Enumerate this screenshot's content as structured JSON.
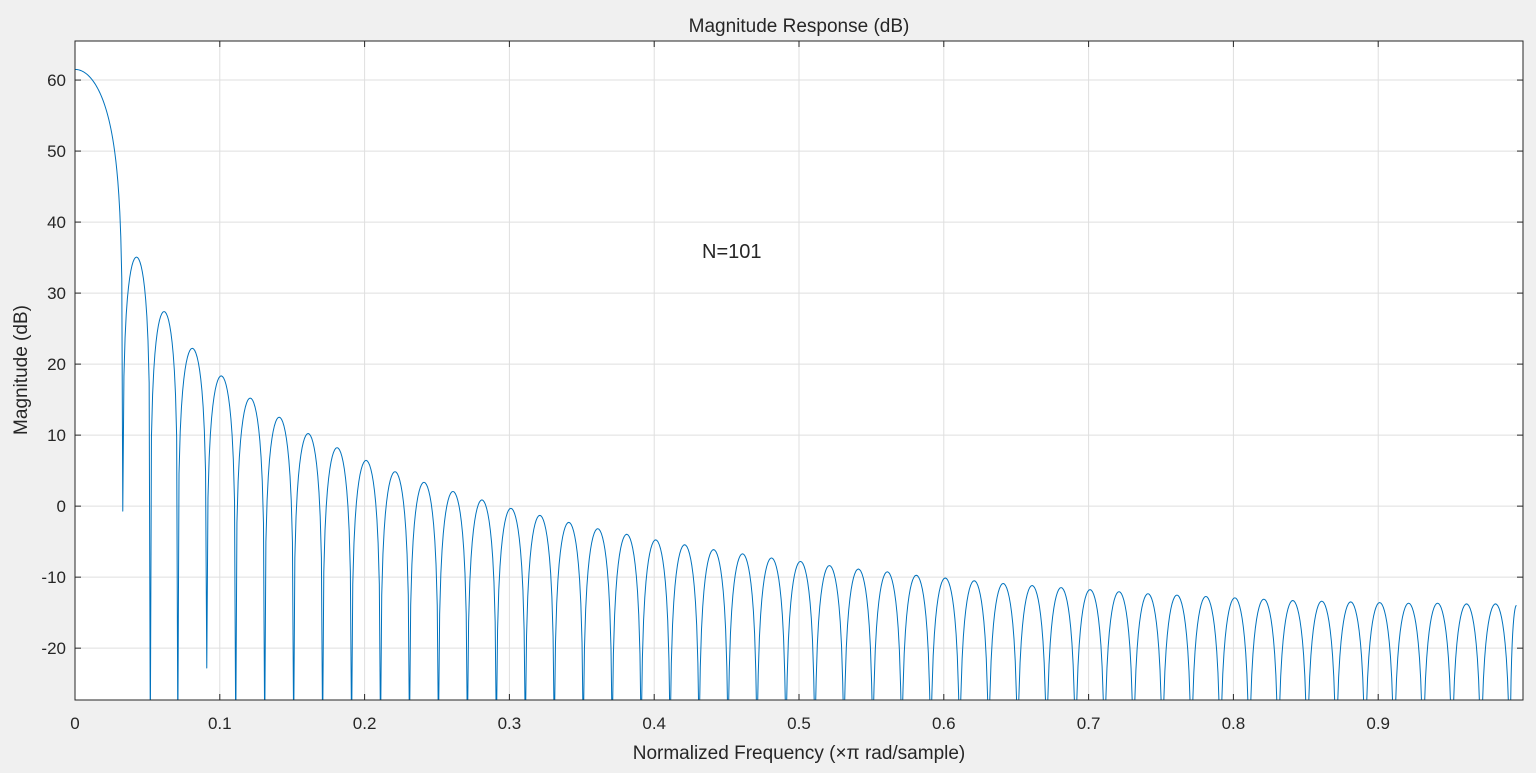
{
  "chart_data": {
    "type": "line",
    "title": "Magnitude Response (dB)",
    "xlabel": "Normalized Frequency (×π rad/sample)",
    "ylabel": "Magnitude (dB)",
    "annotation": "N=101",
    "xlim": [
      0,
      1
    ],
    "ylim": [
      -27.3,
      65.5
    ],
    "xticks": [
      0,
      0.1,
      0.2,
      0.3,
      0.4,
      0.5,
      0.6,
      0.7,
      0.8,
      0.9
    ],
    "xtick_labels": [
      "0",
      "0.1",
      "0.2",
      "0.3",
      "0.4",
      "0.5",
      "0.6",
      "0.7",
      "0.8",
      "0.9"
    ],
    "yticks": [
      60,
      50,
      40,
      30,
      20,
      10,
      0,
      -10,
      -20
    ],
    "ytick_labels": [
      "60",
      "50",
      "40",
      "30",
      "20",
      "10",
      "0",
      "-10",
      "-20"
    ],
    "grid": true,
    "line_color": "#0072bd",
    "grid_color": "#dfdfdf",
    "series": [
      {
        "peaks": {
          "x": [
            0.0,
            0.04,
            0.06,
            0.08,
            0.1,
            0.12,
            0.14,
            0.16,
            0.18,
            0.2,
            0.22,
            0.24,
            0.26,
            0.28,
            0.3,
            0.32,
            0.34,
            0.36,
            0.38,
            0.4,
            0.42,
            0.44,
            0.46,
            0.48,
            0.5,
            0.52,
            0.54,
            0.56,
            0.58,
            0.6,
            0.62,
            0.64,
            0.66,
            0.68,
            0.7,
            0.72,
            0.74,
            0.76,
            0.78,
            0.8,
            0.82,
            0.84,
            0.86,
            0.88,
            0.9,
            0.92,
            0.94,
            0.96,
            0.98,
            1.0
          ],
          "y": [
            61.5,
            35.0,
            27.4,
            22.2,
            18.3,
            15.2,
            12.5,
            10.2,
            8.2,
            6.4,
            4.8,
            3.3,
            2.0,
            0.8,
            -0.4,
            -1.4,
            -2.4,
            -3.3,
            -4.1,
            -4.9,
            -5.6,
            -6.3,
            -6.9,
            -7.5,
            -8.0,
            -8.6,
            -9.1,
            -9.5,
            -10.0,
            -10.4,
            -10.8,
            -11.2,
            -11.5,
            -11.8,
            -12.1,
            -12.4,
            -12.7,
            -12.9,
            -13.1,
            -13.3,
            -13.5,
            -13.7,
            -13.8,
            -13.9,
            -14.0,
            -14.1,
            -14.1,
            -14.2,
            -14.2,
            -14.2
          ]
        },
        "nulls": {
          "x": [
            0.033,
            0.052,
            0.071,
            0.091,
            0.111,
            0.131,
            0.151,
            0.171,
            0.191,
            0.211,
            0.231,
            0.251,
            0.271,
            0.291,
            0.311,
            0.331,
            0.351,
            0.371,
            0.391,
            0.411,
            0.431,
            0.451,
            0.471,
            0.491,
            0.511,
            0.531,
            0.551,
            0.571,
            0.591,
            0.611,
            0.631,
            0.651,
            0.671,
            0.691,
            0.711,
            0.731,
            0.751,
            0.771,
            0.791,
            0.811,
            0.831,
            0.851,
            0.871,
            0.891,
            0.911,
            0.931,
            0.951,
            0.971,
            0.991
          ],
          "y": [
            -0.7,
            -40,
            -40,
            -22.8,
            -40,
            -40,
            -40,
            -40,
            -40,
            -40,
            -40,
            -40,
            -40,
            -40,
            -40,
            -40,
            -40,
            -40,
            -40,
            -40,
            -40,
            -40,
            -40,
            -40,
            -40,
            -40,
            -40,
            -40,
            -40,
            -40,
            -40,
            -40,
            -40,
            -40,
            -40,
            -40,
            -40,
            -40,
            -40,
            -40,
            -40,
            -40,
            -40,
            -40,
            -40,
            -40,
            -40,
            -40,
            -40
          ]
        }
      }
    ]
  }
}
